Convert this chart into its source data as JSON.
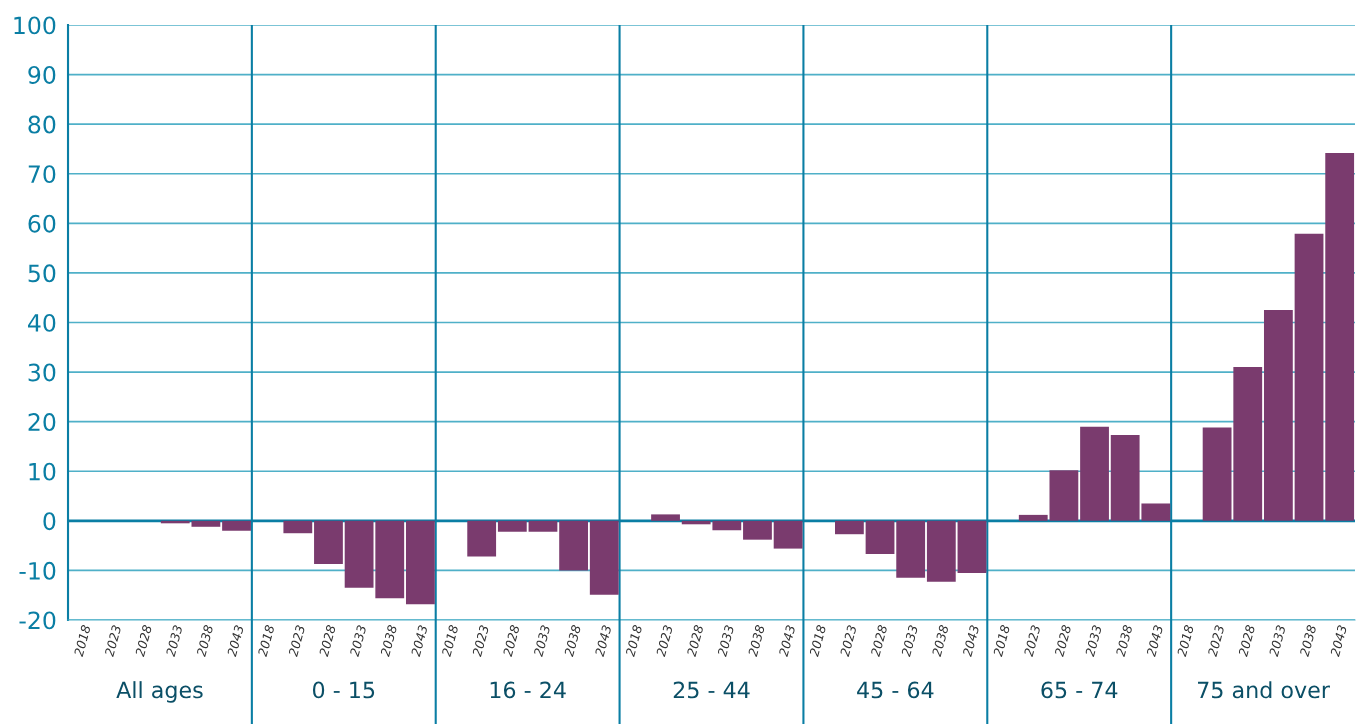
{
  "chart_data": {
    "type": "bar",
    "categories": [
      "2018",
      "2023",
      "2028",
      "2033",
      "2038",
      "2043",
      "2018",
      "2023",
      "2028",
      "2033",
      "2038",
      "2043",
      "2018",
      "2023",
      "2028",
      "2033",
      "2038",
      "2043",
      "2018",
      "2023",
      "2028",
      "2033",
      "2038",
      "2043",
      "2018",
      "2023",
      "2028",
      "2033",
      "2038",
      "2043",
      "2018",
      "2023",
      "2028",
      "2033",
      "2038",
      "2043",
      "2018",
      "2023",
      "2028",
      "2033",
      "2038",
      "2043"
    ],
    "values": [
      0,
      0,
      0,
      -0.5,
      -1.2,
      -2,
      0,
      -2.5,
      -8.7,
      -13.5,
      -15.6,
      -16.8,
      0,
      -7.2,
      -2.2,
      -2.2,
      -10,
      -14.9,
      0,
      1.3,
      -0.7,
      -1.9,
      -3.8,
      -5.6,
      0,
      -2.7,
      -6.7,
      -11.5,
      -12.3,
      -10.5,
      0,
      1.2,
      10.2,
      19,
      17.3,
      3.5,
      0,
      18.8,
      31,
      42.5,
      57.9,
      74.2
    ],
    "color": "#7a3b6e",
    "ylim": [
      -20,
      100
    ],
    "yticks": [
      -20,
      -10,
      0,
      10,
      20,
      30,
      40,
      50,
      60,
      70,
      80,
      90,
      100
    ],
    "grid": "y",
    "ref_lines": [
      {
        "axis": "y",
        "value": 0,
        "color": "#0a7ea4"
      }
    ],
    "annotations": [
      "All ages",
      "0 - 15",
      "16 - 24",
      "25 - 44",
      "45 - 64",
      "65 - 74",
      "75 and over"
    ]
  }
}
